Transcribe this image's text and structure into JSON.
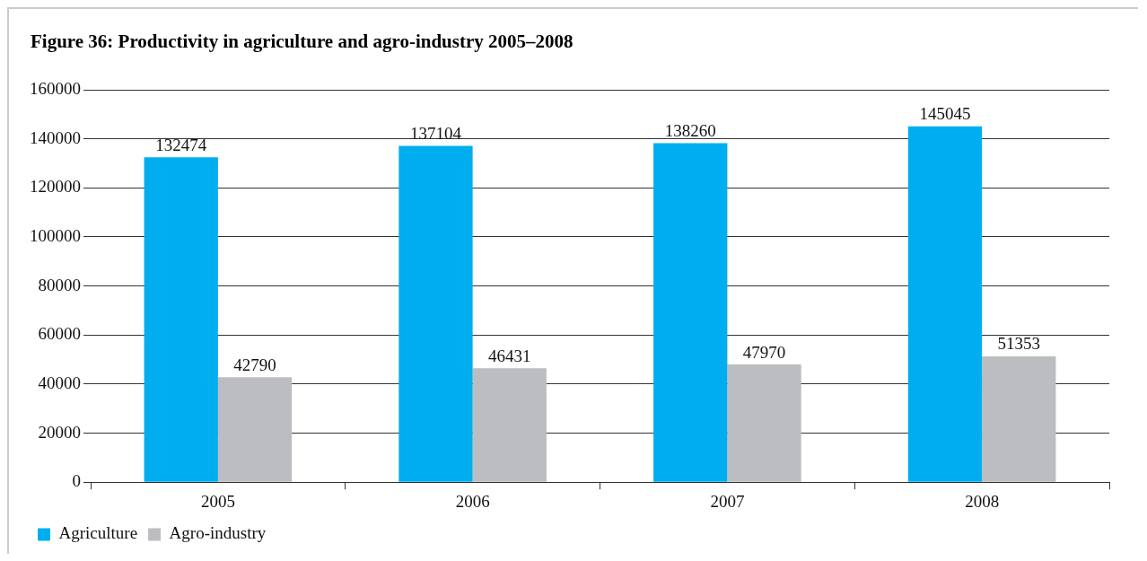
{
  "chart_data": {
    "type": "bar",
    "title": "Figure 36: Productivity in agriculture and agro-industry 2005–2008",
    "categories": [
      "2005",
      "2006",
      "2007",
      "2008"
    ],
    "series": [
      {
        "name": "Agriculture",
        "color": "#00aeef",
        "values": [
          132474,
          137104,
          138260,
          145045
        ]
      },
      {
        "name": "Agro-industry",
        "color": "#bcbdc0",
        "values": [
          42790,
          46431,
          47970,
          51353
        ]
      }
    ],
    "ylim": [
      0,
      160000
    ],
    "yticks": [
      0,
      20000,
      40000,
      60000,
      80000,
      100000,
      120000,
      140000,
      160000
    ],
    "grid": "y",
    "legend": "bottom left",
    "data_labels": true
  }
}
